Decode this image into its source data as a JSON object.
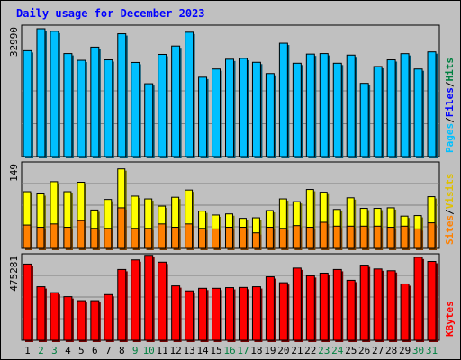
{
  "chart_data": [
    {
      "type": "bar",
      "panel": "hits",
      "title": "Daily usage for December 2023",
      "ylabel_max": "32990",
      "legend": [
        "Pages",
        "Files",
        "Hits"
      ],
      "categories": [
        "1",
        "2",
        "3",
        "4",
        "5",
        "6",
        "7",
        "8",
        "9",
        "10",
        "11",
        "12",
        "13",
        "14",
        "15",
        "16",
        "17",
        "18",
        "19",
        "20",
        "21",
        "22",
        "23",
        "24",
        "25",
        "26",
        "27",
        "28",
        "29",
        "30",
        "31"
      ],
      "weekend_days": [
        2,
        3,
        9,
        10,
        16,
        17,
        23,
        24,
        30,
        31
      ],
      "ylim": [
        0,
        32990
      ],
      "grid": true,
      "series": [
        {
          "name": "Files",
          "values": [
            0,
            0,
            0,
            0,
            0,
            0,
            0,
            0,
            0,
            0,
            0,
            0,
            0,
            0,
            0,
            0,
            0,
            0,
            0,
            0,
            0,
            0,
            0,
            0,
            0,
            0,
            0,
            0,
            0,
            0,
            0
          ]
        },
        {
          "name": "Hits",
          "values": [
            27330,
            32990,
            32340,
            26580,
            24850,
            28250,
            24970,
            31700,
            24290,
            18800,
            26370,
            28530,
            32100,
            20480,
            22600,
            25130,
            25350,
            24330,
            21430,
            29260,
            24090,
            26450,
            26580,
            24090,
            26190,
            18890,
            23240,
            24970,
            26560,
            22600,
            27020
          ]
        },
        {
          "name": "Pages",
          "values": [
            0,
            0,
            0,
            0,
            0,
            0,
            0,
            0,
            0,
            0,
            0,
            0,
            0,
            0,
            0,
            0,
            0,
            0,
            0,
            0,
            0,
            0,
            0,
            0,
            0,
            0,
            0,
            0,
            0,
            0,
            0
          ]
        }
      ],
      "colors": {
        "Pages": "#00e0e0",
        "Files": "#0080ff",
        "Hits": "#00c0ff",
        "Pages_label": "#00c0ff",
        "Files_label": "#0000ff",
        "Hits_label": "#008040"
      }
    },
    {
      "type": "bar",
      "panel": "visits",
      "ylabel_max": "149",
      "legend": [
        "Sites",
        "Visits"
      ],
      "ylim": [
        0,
        149
      ],
      "grid": true,
      "series": [
        {
          "name": "Visits",
          "values": [
            102,
            98,
            120,
            102,
            119,
            69,
            88,
            143,
            94,
            89,
            76,
            92,
            105,
            67,
            60,
            62,
            54,
            55,
            68,
            89,
            84,
            106,
            101,
            70,
            91,
            72,
            72,
            73,
            58,
            59,
            93
          ]
        },
        {
          "name": "Sites",
          "values": [
            42,
            38,
            44,
            38,
            50,
            36,
            36,
            73,
            36,
            36,
            44,
            38,
            44,
            36,
            35,
            38,
            38,
            28,
            38,
            36,
            41,
            38,
            47,
            40,
            40,
            40,
            40,
            38,
            40,
            35,
            46
          ]
        }
      ],
      "colors": {
        "Visits": "#ffff00",
        "Sites": "#ff8000",
        "Visits_label": "#e0c000",
        "Sites_label": "#ff8000"
      }
    },
    {
      "type": "bar",
      "panel": "kbytes",
      "ylabel_max": "475281",
      "legend": [
        "KBytes"
      ],
      "ylim": [
        0,
        475281
      ],
      "grid": true,
      "series": [
        {
          "name": "KBytes",
          "values": [
            437000,
            307000,
            273000,
            250000,
            227000,
            227000,
            262000,
            406000,
            461000,
            487000,
            448000,
            312000,
            283000,
            298000,
            298000,
            302000,
            303000,
            307000,
            364000,
            330000,
            414000,
            370000,
            385000,
            406000,
            344000,
            431000,
            409000,
            399000,
            323000,
            476000,
            452000
          ]
        }
      ],
      "colors": {
        "KBytes": "#ff0000",
        "KBytes_label": "#ff0000"
      }
    }
  ],
  "colors": {
    "border": "#000000",
    "panel_bg": "#c0c0c0",
    "page_bg": "#ffffff",
    "title": "#0000ff",
    "weekday_label": "#000000",
    "weekend_label": "#008040"
  }
}
